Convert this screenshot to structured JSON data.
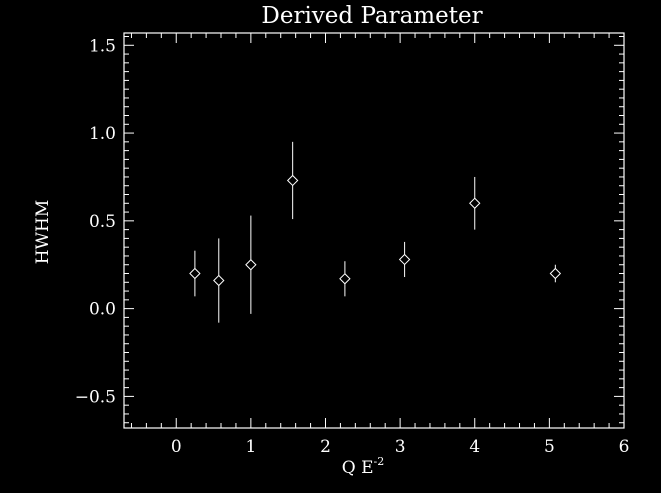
{
  "chart_data": {
    "type": "scatter",
    "title": "Derived Parameter",
    "xlabel": "Q E",
    "xlabel_superscript": "-2",
    "ylabel": "HWHM",
    "xlim": [
      -0.7,
      6.0
    ],
    "ylim": [
      -0.68,
      1.57
    ],
    "x_ticks": [
      0,
      1,
      2,
      3,
      4,
      5,
      6
    ],
    "x_tick_labels": [
      "0",
      "1",
      "2",
      "3",
      "4",
      "5",
      "6"
    ],
    "y_ticks": [
      -0.5,
      0.0,
      0.5,
      1.0,
      1.5
    ],
    "y_tick_labels": [
      "−0.5",
      "0.0",
      "0.5",
      "1.0",
      "1.5"
    ],
    "marker": "diamond",
    "grid": false,
    "foreground": "#ffffff",
    "background": "#000000",
    "points": [
      {
        "x": 0.25,
        "y": 0.2,
        "err": 0.13
      },
      {
        "x": 0.57,
        "y": 0.16,
        "err": 0.24
      },
      {
        "x": 1.0,
        "y": 0.25,
        "err": 0.28
      },
      {
        "x": 1.56,
        "y": 0.73,
        "err": 0.22
      },
      {
        "x": 2.26,
        "y": 0.17,
        "err": 0.1
      },
      {
        "x": 3.06,
        "y": 0.28,
        "err": 0.1
      },
      {
        "x": 4.0,
        "y": 0.6,
        "err": 0.15
      },
      {
        "x": 5.08,
        "y": 0.2,
        "err": 0.05
      }
    ]
  }
}
